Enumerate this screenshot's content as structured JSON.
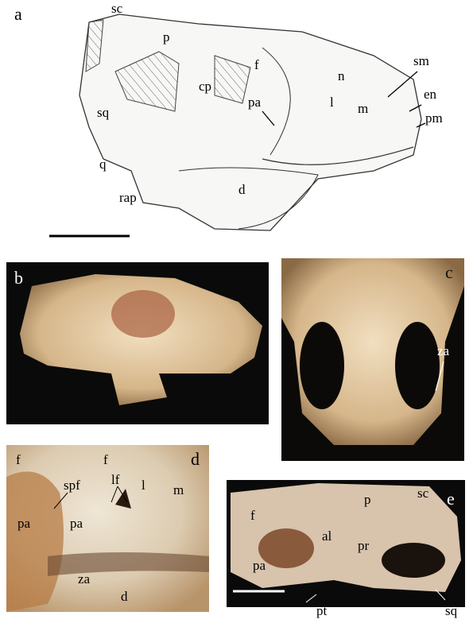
{
  "panels": [
    {
      "letter": "a",
      "labels": [
        "sc",
        "p",
        "f",
        "cp",
        "pa",
        "n",
        "l",
        "m",
        "sm",
        "en",
        "pm",
        "sq",
        "q",
        "rap",
        "d"
      ]
    },
    {
      "letter": "b"
    },
    {
      "letter": "c",
      "labels": [
        "za"
      ]
    },
    {
      "letter": "d",
      "labels": [
        "f",
        "f",
        "l",
        "m",
        "lf",
        "spf",
        "pa",
        "pa",
        "za",
        "d"
      ]
    },
    {
      "letter": "e",
      "labels": [
        "sc",
        "p",
        "f",
        "al",
        "pr",
        "pa",
        "sq",
        "pt"
      ]
    }
  ]
}
